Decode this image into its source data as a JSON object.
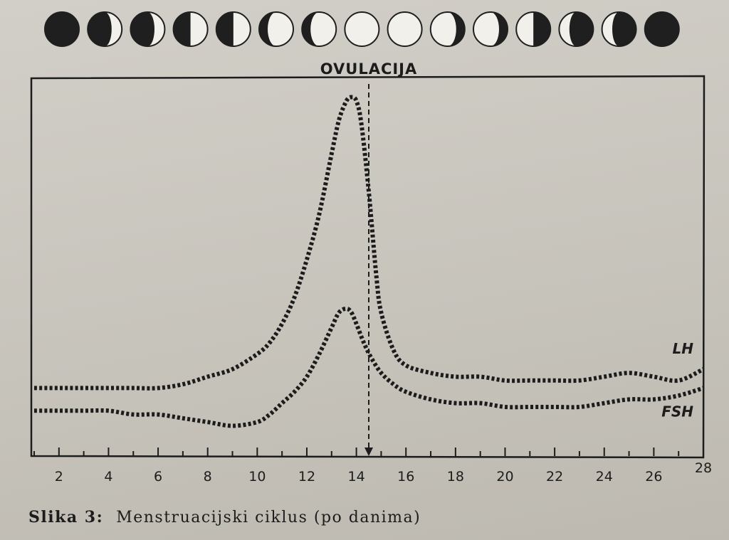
{
  "moon_phases": [
    "new",
    "waxing-crescent",
    "waxing-crescent",
    "first-quarter",
    "first-quarter",
    "waxing-gibbous",
    "waxing-gibbous",
    "full",
    "full",
    "waning-gibbous",
    "waning-gibbous",
    "last-quarter",
    "waning-crescent",
    "waning-crescent",
    "new"
  ],
  "caption": {
    "label": "Slika 3:",
    "text": "Menstruacijski ciklus (po danima)"
  },
  "chart_data": {
    "type": "line",
    "title": "",
    "xlabel": "",
    "ylabel": "",
    "xlim": [
      1,
      28
    ],
    "ylim": [
      0,
      100
    ],
    "grid": false,
    "x_ticks": [
      2,
      4,
      6,
      8,
      10,
      12,
      14,
      16,
      18,
      20,
      22,
      24,
      26,
      28
    ],
    "annotation": {
      "label": "OVULACIJA",
      "x": 14.5
    },
    "series": [
      {
        "name": "LH",
        "x": [
          1,
          2,
          3,
          4,
          5,
          6,
          7,
          8,
          9,
          10,
          10.5,
          11,
          11.5,
          12,
          12.5,
          13,
          13.3,
          13.6,
          13.8,
          14,
          14.2,
          14.5,
          14.8,
          15,
          15.5,
          16,
          17,
          18,
          19,
          20,
          21,
          22,
          23,
          24,
          25,
          26,
          27,
          28
        ],
        "values": [
          18,
          18,
          18,
          18,
          18,
          18,
          19,
          21,
          23,
          27,
          30,
          35,
          42,
          52,
          64,
          80,
          89,
          94,
          95,
          94,
          88,
          70,
          48,
          38,
          28,
          24,
          22,
          21,
          21,
          20,
          20,
          20,
          20,
          21,
          22,
          21,
          20,
          23
        ]
      },
      {
        "name": "FSH",
        "x": [
          1,
          2,
          3,
          4,
          5,
          6,
          7,
          8,
          9,
          10,
          10.5,
          11,
          11.5,
          12,
          12.5,
          13,
          13.3,
          13.6,
          13.8,
          14,
          14.3,
          14.6,
          15,
          15.5,
          16,
          17,
          18,
          19,
          20,
          21,
          22,
          23,
          24,
          25,
          26,
          27,
          28
        ],
        "values": [
          12,
          12,
          12,
          12,
          11,
          11,
          10,
          9,
          8,
          9,
          11,
          14,
          17,
          21,
          27,
          34,
          38,
          39,
          38,
          35,
          30,
          26,
          22,
          19,
          17,
          15,
          14,
          14,
          13,
          13,
          13,
          13,
          14,
          15,
          15,
          16,
          18
        ]
      }
    ]
  }
}
